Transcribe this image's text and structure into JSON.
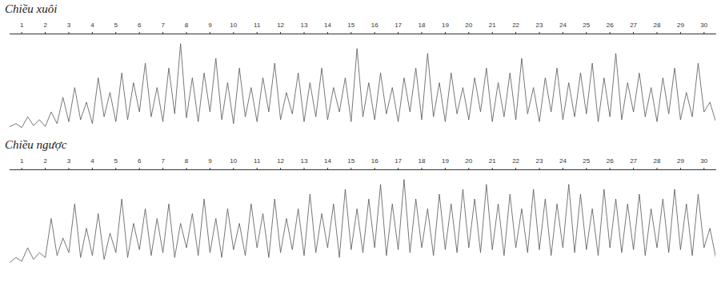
{
  "chart_data": [
    {
      "type": "line",
      "title": "Chiều xuôi",
      "x": [
        0.5,
        0.75,
        1,
        1.25,
        1.5,
        1.75,
        2,
        2.25,
        2.5,
        2.75,
        3,
        3.25,
        3.5,
        3.75,
        4,
        4.25,
        4.5,
        4.75,
        5,
        5.25,
        5.5,
        5.75,
        6,
        6.25,
        6.5,
        6.75,
        7,
        7.25,
        7.5,
        7.75,
        8,
        8.25,
        8.5,
        8.75,
        9,
        9.25,
        9.5,
        9.75,
        10,
        10.25,
        10.5,
        10.75,
        11,
        11.25,
        11.5,
        11.75,
        12,
        12.25,
        12.5,
        12.75,
        13,
        13.25,
        13.5,
        13.75,
        14,
        14.25,
        14.5,
        14.75,
        15,
        15.25,
        15.5,
        15.75,
        16,
        16.25,
        16.5,
        16.75,
        17,
        17.25,
        17.5,
        17.75,
        18,
        18.25,
        18.5,
        18.75,
        19,
        19.25,
        19.5,
        19.75,
        20,
        20.25,
        20.5,
        20.75,
        21,
        21.25,
        21.5,
        21.75,
        22,
        22.25,
        22.5,
        22.75,
        23,
        23.25,
        23.5,
        23.75,
        24,
        24.25,
        24.5,
        24.75,
        25,
        25.25,
        25.5,
        25.75,
        26,
        26.25,
        26.5,
        26.75,
        27,
        27.25,
        27.5,
        27.75,
        28,
        28.25,
        28.5,
        28.75,
        29,
        29.25,
        29.5,
        29.75,
        30,
        30.25,
        30.5
      ],
      "values": [
        5,
        8,
        4,
        15,
        6,
        12,
        5,
        20,
        8,
        35,
        10,
        45,
        12,
        30,
        8,
        55,
        15,
        40,
        10,
        60,
        12,
        50,
        20,
        70,
        15,
        45,
        10,
        65,
        18,
        90,
        14,
        55,
        10,
        60,
        20,
        75,
        12,
        50,
        8,
        65,
        15,
        45,
        10,
        55,
        20,
        70,
        12,
        40,
        18,
        60,
        10,
        50,
        15,
        65,
        12,
        45,
        20,
        55,
        10,
        85,
        15,
        50,
        12,
        60,
        18,
        45,
        10,
        55,
        20,
        65,
        12,
        80,
        15,
        50,
        10,
        60,
        18,
        45,
        12,
        55,
        20,
        65,
        10,
        50,
        15,
        60,
        12,
        75,
        18,
        45,
        10,
        55,
        20,
        65,
        12,
        50,
        15,
        60,
        18,
        70,
        10,
        55,
        15,
        80,
        12,
        50,
        20,
        60,
        15,
        45,
        10,
        55,
        18,
        65,
        12,
        40,
        15,
        70,
        20,
        30,
        10
      ],
      "color": "#555555",
      "xlim": [
        0.5,
        30.5
      ],
      "xticks": [
        1,
        2,
        3,
        4,
        5,
        6,
        7,
        8,
        9,
        10,
        11,
        12,
        13,
        14,
        15,
        16,
        17,
        18,
        19,
        20,
        21,
        22,
        23,
        24,
        25,
        26,
        27,
        28,
        29,
        30
      ],
      "ylim": [
        0,
        100
      ],
      "tick_labels": "x"
    },
    {
      "type": "line",
      "title": "Chiều ngược",
      "x": [
        0.5,
        0.75,
        1,
        1.25,
        1.5,
        1.75,
        2,
        2.25,
        2.5,
        2.75,
        3,
        3.25,
        3.5,
        3.75,
        4,
        4.25,
        4.5,
        4.75,
        5,
        5.25,
        5.5,
        5.75,
        6,
        6.25,
        6.5,
        6.75,
        7,
        7.25,
        7.5,
        7.75,
        8,
        8.25,
        8.5,
        8.75,
        9,
        9.25,
        9.5,
        9.75,
        10,
        10.25,
        10.5,
        10.75,
        11,
        11.25,
        11.5,
        11.75,
        12,
        12.25,
        12.5,
        12.75,
        13,
        13.25,
        13.5,
        13.75,
        14,
        14.25,
        14.5,
        14.75,
        15,
        15.25,
        15.5,
        15.75,
        16,
        16.25,
        16.5,
        16.75,
        17,
        17.25,
        17.5,
        17.75,
        18,
        18.25,
        18.5,
        18.75,
        19,
        19.25,
        19.5,
        19.75,
        20,
        20.25,
        20.5,
        20.75,
        21,
        21.25,
        21.5,
        21.75,
        22,
        22.25,
        22.5,
        22.75,
        23,
        23.25,
        23.5,
        23.75,
        24,
        24.25,
        24.5,
        24.75,
        25,
        25.25,
        25.5,
        25.75,
        26,
        26.25,
        26.5,
        26.75,
        27,
        27.25,
        27.5,
        27.75,
        28,
        28.25,
        28.5,
        28.75,
        29,
        29.25,
        29.5,
        29.75,
        30,
        30.25,
        30.5
      ],
      "values": [
        5,
        10,
        6,
        20,
        8,
        15,
        10,
        50,
        12,
        30,
        15,
        65,
        10,
        40,
        12,
        55,
        8,
        35,
        15,
        70,
        10,
        45,
        18,
        60,
        12,
        50,
        15,
        65,
        10,
        45,
        20,
        55,
        12,
        70,
        15,
        50,
        10,
        60,
        18,
        45,
        12,
        65,
        20,
        55,
        10,
        70,
        15,
        50,
        18,
        60,
        12,
        75,
        15,
        55,
        20,
        65,
        10,
        80,
        18,
        60,
        15,
        70,
        20,
        85,
        12,
        65,
        18,
        90,
        15,
        70,
        20,
        60,
        12,
        75,
        18,
        65,
        15,
        80,
        20,
        70,
        15,
        85,
        18,
        65,
        12,
        75,
        20,
        60,
        15,
        80,
        18,
        70,
        12,
        65,
        20,
        85,
        15,
        75,
        18,
        60,
        12,
        80,
        20,
        70,
        15,
        65,
        18,
        75,
        12,
        60,
        20,
        70,
        15,
        80,
        18,
        65,
        12,
        75,
        20,
        40,
        10
      ],
      "color": "#555555",
      "xlim": [
        0.5,
        30.5
      ],
      "xticks": [
        1,
        2,
        3,
        4,
        5,
        6,
        7,
        8,
        9,
        10,
        11,
        12,
        13,
        14,
        15,
        16,
        17,
        18,
        19,
        20,
        21,
        22,
        23,
        24,
        25,
        26,
        27,
        28,
        29,
        30
      ],
      "ylim": [
        0,
        100
      ],
      "tick_labels": "x"
    }
  ]
}
